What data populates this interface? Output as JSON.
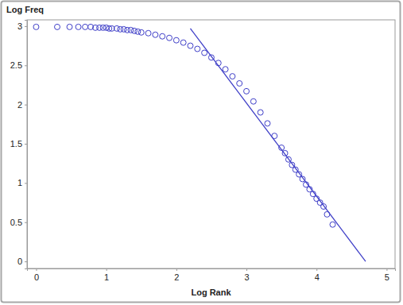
{
  "chart_data": {
    "type": "scatter",
    "x_label": "Log Rank",
    "y_label": "Log Freq",
    "xlim": [
      -0.13,
      5.12
    ],
    "ylim": [
      -0.09,
      3.08
    ],
    "xticks": [
      0,
      1,
      2,
      3,
      4,
      5
    ],
    "yticks": [
      0,
      0.5,
      1,
      1.5,
      2,
      2.5,
      3
    ],
    "grid": false,
    "series": [
      {
        "type": "scatter",
        "marker": "circle",
        "color": "#3f3fc8",
        "x": [
          0,
          0.301,
          0.477,
          0.602,
          0.699,
          0.778,
          0.845,
          0.903,
          0.954,
          1.0,
          1.041,
          1.079,
          1.15,
          1.2,
          1.25,
          1.3,
          1.35,
          1.4,
          1.45,
          1.5,
          1.6,
          1.7,
          1.8,
          1.9,
          2.0,
          2.1,
          2.2,
          2.3,
          2.4,
          2.5,
          2.6,
          2.7,
          2.8,
          2.9,
          3.0,
          3.1,
          3.2,
          3.3,
          3.4,
          3.5,
          3.55,
          3.6,
          3.65,
          3.7,
          3.75,
          3.8,
          3.85,
          3.9,
          3.95,
          4.0,
          4.05,
          4.1,
          4.15,
          4.23
        ],
        "values": [
          2.99,
          2.99,
          2.99,
          2.99,
          2.99,
          2.99,
          2.98,
          2.98,
          2.98,
          2.98,
          2.97,
          2.97,
          2.97,
          2.96,
          2.96,
          2.95,
          2.95,
          2.94,
          2.93,
          2.92,
          2.91,
          2.89,
          2.87,
          2.85,
          2.82,
          2.79,
          2.75,
          2.71,
          2.66,
          2.6,
          2.53,
          2.45,
          2.36,
          2.27,
          2.17,
          2.04,
          1.9,
          1.76,
          1.6,
          1.45,
          1.38,
          1.3,
          1.23,
          1.17,
          1.11,
          1.05,
          0.98,
          0.92,
          0.86,
          0.8,
          0.75,
          0.7,
          0.6,
          0.47
        ]
      },
      {
        "type": "line",
        "line_style": "solid",
        "color": "#3f3fc8",
        "x": [
          2.2,
          4.7
        ],
        "values": [
          2.97,
          0
        ]
      }
    ]
  }
}
